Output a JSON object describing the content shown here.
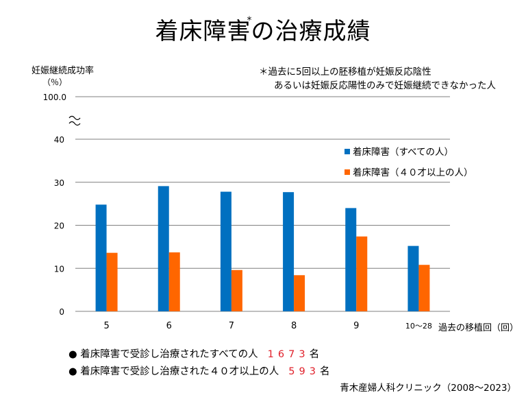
{
  "title": {
    "main": "着床障害",
    "asterisk": "*",
    "rest": "の治療成績"
  },
  "y_axis": {
    "label": "妊娠継続成功率",
    "unit": "（％）"
  },
  "note": {
    "line1": "＊過去に5回以上の胚移植が妊娠反応陰性",
    "line2": "あるいは妊娠反応陽性のみで妊娠継続できなかった人"
  },
  "x_axis": {
    "label": "過去の移植回（回）"
  },
  "colors": {
    "series1": "#0070c0",
    "series2": "#ff6600",
    "grid": "#7f7f7f"
  },
  "chart_data": {
    "type": "bar",
    "categories": [
      "5",
      "6",
      "7",
      "8",
      "9",
      "10〜28"
    ],
    "series": [
      {
        "name": "着床障害（すべての人）",
        "values": [
          24.8,
          29.1,
          27.8,
          27.7,
          24.0,
          15.2
        ]
      },
      {
        "name": "着床障害（４０才以上の人）",
        "values": [
          13.6,
          13.7,
          9.6,
          8.4,
          17.4,
          10.8
        ]
      }
    ],
    "yticks": [
      "0",
      "10",
      "20",
      "30",
      "40",
      "100.0"
    ],
    "ylim": [
      0,
      40
    ],
    "axis_break": true,
    "grid": true,
    "legend_position": "right"
  },
  "summary": [
    {
      "text": "● 着床障害で受診し治療されたすべての人",
      "value": "1673",
      "unit": "名"
    },
    {
      "text": "● 着床障害で受診し治療された４０才以上の人",
      "value": "593",
      "unit": "名"
    }
  ],
  "source": "青木産婦人科クリニック（2008〜2023）"
}
